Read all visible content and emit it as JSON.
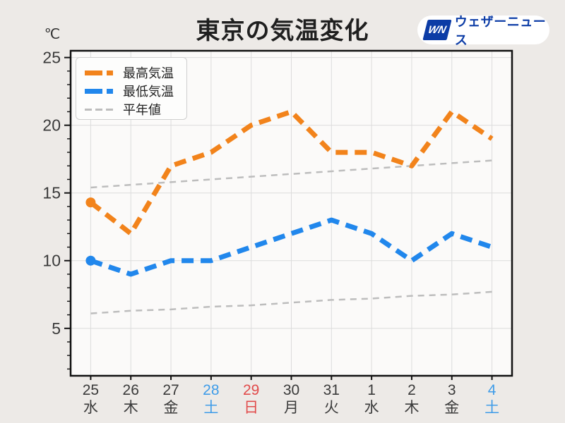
{
  "page": {
    "title": "東京の気温変化",
    "unit_label": "℃"
  },
  "logo": {
    "mark": "WN",
    "text": "ウェザーニュース",
    "color": "#0C3CA6"
  },
  "legend": [
    {
      "label": "最高気温",
      "color": "#F2831B",
      "style": "thick-dash"
    },
    {
      "label": "最低気温",
      "color": "#2187EC",
      "style": "thick-dash"
    },
    {
      "label": "平年値",
      "color": "#BDBDBD",
      "style": "thin-dash"
    }
  ],
  "chart_data": {
    "type": "line",
    "title": "東京の気温変化",
    "ylabel": "℃",
    "ylim": [
      1.5,
      25.5
    ],
    "y_ticks": [
      5,
      10,
      15,
      20,
      25
    ],
    "grid": true,
    "legend_position": "upper-left",
    "categories": [
      "25",
      "26",
      "27",
      "28",
      "29",
      "30",
      "31",
      "1",
      "2",
      "3",
      "4"
    ],
    "weekdays": [
      "水",
      "木",
      "金",
      "土",
      "日",
      "月",
      "火",
      "水",
      "木",
      "金",
      "土"
    ],
    "day_colors": [
      "#3A3A3A",
      "#3A3A3A",
      "#3A3A3A",
      "#3F9CE8",
      "#E14B4B",
      "#3A3A3A",
      "#3A3A3A",
      "#3A3A3A",
      "#3A3A3A",
      "#3A3A3A",
      "#3F9CE8"
    ],
    "series": [
      {
        "name": "最高気温",
        "color": "#F2831B",
        "width": 7,
        "dash": "17 10",
        "marker_first": true,
        "values": [
          14.3,
          12,
          17,
          18,
          20,
          21,
          18,
          18,
          17,
          21,
          19
        ]
      },
      {
        "name": "最低気温",
        "color": "#2187EC",
        "width": 7,
        "dash": "17 10",
        "marker_first": true,
        "values": [
          10,
          9,
          10,
          10,
          11,
          12,
          13,
          12,
          10,
          12,
          11
        ]
      },
      {
        "name": "平年値(最高)",
        "color": "#BDBDBD",
        "width": 2.5,
        "dash": "9 7",
        "marker_first": false,
        "values": [
          15.4,
          15.6,
          15.8,
          16.0,
          16.2,
          16.4,
          16.6,
          16.8,
          17.0,
          17.2,
          17.4
        ]
      },
      {
        "name": "平年値(最低)",
        "color": "#BDBDBD",
        "width": 2.5,
        "dash": "9 7",
        "marker_first": false,
        "values": [
          6.1,
          6.3,
          6.4,
          6.6,
          6.7,
          6.9,
          7.1,
          7.2,
          7.4,
          7.5,
          7.7
        ]
      }
    ],
    "colors": {
      "background": "#EDEAE7",
      "plot_background": "#FBFAF9",
      "frame": "#111111",
      "grid": "#DCDCDC",
      "tick_label": "#3A3A3A",
      "saturday": "#3F9CE8",
      "sunday": "#E14B4B"
    }
  }
}
